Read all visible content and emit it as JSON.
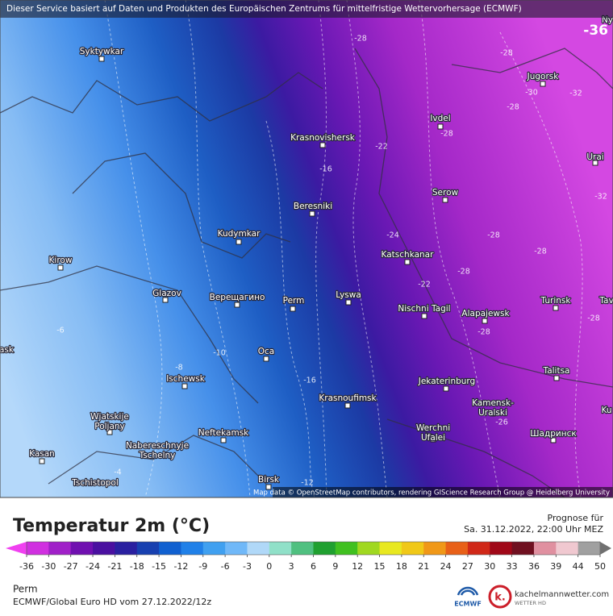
{
  "banner": "Dieser Service basiert auf Daten und Produkten des Europäischen Zentrums für mittelfristige Wettervorhersage (ECMWF)",
  "corner_label": "-36",
  "map": {
    "cities": [
      {
        "lines": [
          "Syktywkar"
        ]
      },
      {
        "lines": [
          "Krasnovishersk"
        ]
      },
      {
        "lines": [
          "Beresniki"
        ]
      },
      {
        "lines": [
          "Kudymkar"
        ]
      },
      {
        "lines": [
          "Kirow"
        ]
      },
      {
        "lines": [
          "Glazov"
        ]
      },
      {
        "lines": [
          "Верещагино"
        ]
      },
      {
        "lines": [
          "Perm"
        ]
      },
      {
        "lines": [
          "Lyswa"
        ]
      },
      {
        "lines": [
          "Katschkanar"
        ]
      },
      {
        "lines": [
          "Nischni Tagil"
        ]
      },
      {
        "lines": [
          "Alapajewsk"
        ]
      },
      {
        "lines": [
          "Ivdel"
        ]
      },
      {
        "lines": [
          "Jugorsk"
        ]
      },
      {
        "lines": [
          "Urai"
        ]
      },
      {
        "lines": [
          "Serow"
        ]
      },
      {
        "lines": [
          "Turinsk"
        ]
      },
      {
        "lines": [
          "Talitsa"
        ]
      },
      {
        "lines": [
          "Jekaterinburg"
        ]
      },
      {
        "lines": [
          "Kamensk-",
          "Uralski"
        ]
      },
      {
        "lines": [
          "Шадринск"
        ]
      },
      {
        "lines": [
          "Krasnoufimsk"
        ]
      },
      {
        "lines": [
          "Oca"
        ]
      },
      {
        "lines": [
          "Ischewsk"
        ]
      },
      {
        "lines": [
          "Wjatskije",
          "Poljany"
        ]
      },
      {
        "lines": [
          "Nabereschnyje",
          "Tschelny"
        ]
      },
      {
        "lines": [
          "Neftekamsk"
        ]
      },
      {
        "lines": [
          "Kasan"
        ]
      },
      {
        "lines": [
          "Tschistopol"
        ]
      },
      {
        "lines": [
          "Birsk"
        ]
      },
      {
        "lines": [
          "Werchni",
          "Ufalei"
        ]
      },
      {
        "lines": [
          "Ny"
        ]
      },
      {
        "lines": [
          "Tav"
        ]
      },
      {
        "lines": [
          "Ku"
        ]
      },
      {
        "lines": [
          "ask"
        ]
      }
    ],
    "contour_labels": [
      "-28",
      "-28",
      "-30",
      "-32",
      "-28",
      "-28",
      "-22",
      "-16",
      "-32",
      "-28",
      "-28",
      "-24",
      "-22",
      "-28",
      "-28",
      "-28",
      "-6",
      "-8",
      "-10",
      "-16",
      "-26",
      "-4",
      "-12"
    ],
    "attribution": "Map data © OpenStreetMap contributors, rendering GIScience Research Group @ Heidelberg University"
  },
  "legend": {
    "title": "Temperatur 2m (°C)",
    "ticks": [
      -36,
      -30,
      -27,
      -24,
      -21,
      -18,
      -15,
      -12,
      -9,
      -6,
      -3,
      0,
      3,
      6,
      9,
      12,
      15,
      18,
      21,
      24,
      27,
      30,
      33,
      36,
      39,
      44,
      50
    ],
    "colors": [
      "#d030e0",
      "#a020c8",
      "#7010b0",
      "#4a10a0",
      "#2a20a0",
      "#1840b0",
      "#1060d0",
      "#2080e8",
      "#40a0f0",
      "#70b8f8",
      "#b0d8f8",
      "#90e0c8",
      "#50c080",
      "#20a030",
      "#40c020",
      "#a0d820",
      "#e8e820",
      "#f0c818",
      "#f09818",
      "#e86018",
      "#d02818",
      "#a00818",
      "#701020",
      "#e090a0",
      "#f0c8d0",
      "#a0a0a0"
    ],
    "low_color": "#f040f0",
    "high_color": "#707070"
  },
  "forecast": {
    "label": "Prognose für",
    "time": "Sa. 31.12.2022, 22:00 Uhr MEZ"
  },
  "footer": {
    "location": "Perm",
    "model": "ECMWF/Global Euro HD vom  27.12.2022/12z"
  },
  "logos": {
    "ecmwf": "ECMWF",
    "site": "kachelmannwetter.com",
    "site_sub": "WETTER HD"
  }
}
